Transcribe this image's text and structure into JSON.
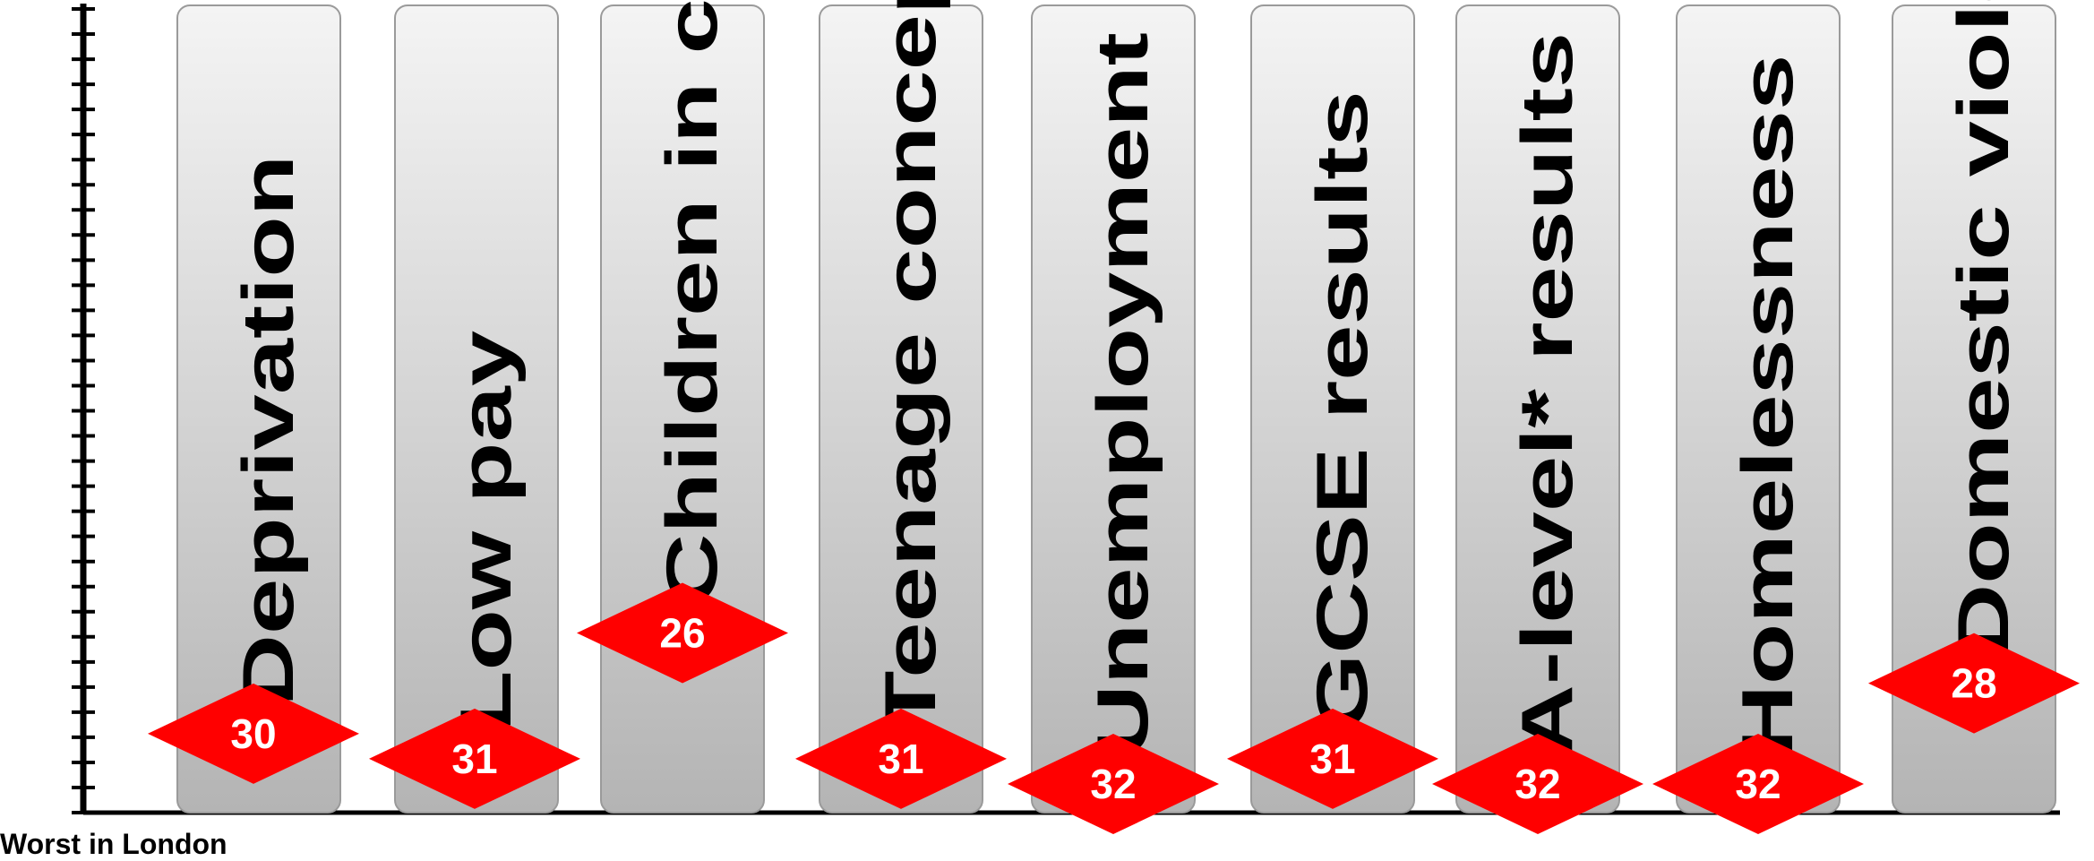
{
  "chart_data": {
    "type": "bar",
    "categories": [
      "Deprivation",
      "Low pay",
      "Children in care",
      "Teenage conceptions",
      "Unemployment",
      "GCSE results",
      "A-level* results",
      "Homelessness",
      "Domestic violence"
    ],
    "values": [
      30,
      31,
      26,
      31,
      32,
      31,
      32,
      32,
      28
    ],
    "ylim": [
      0,
      32
    ],
    "axis_note": "Worst in London",
    "grid": false,
    "colors": {
      "marker": "#ff0000",
      "marker_text": "#ffffff",
      "bar_top": "#f4f4f4",
      "bar_bottom": "#b4b4b4",
      "axis": "#000000"
    }
  }
}
